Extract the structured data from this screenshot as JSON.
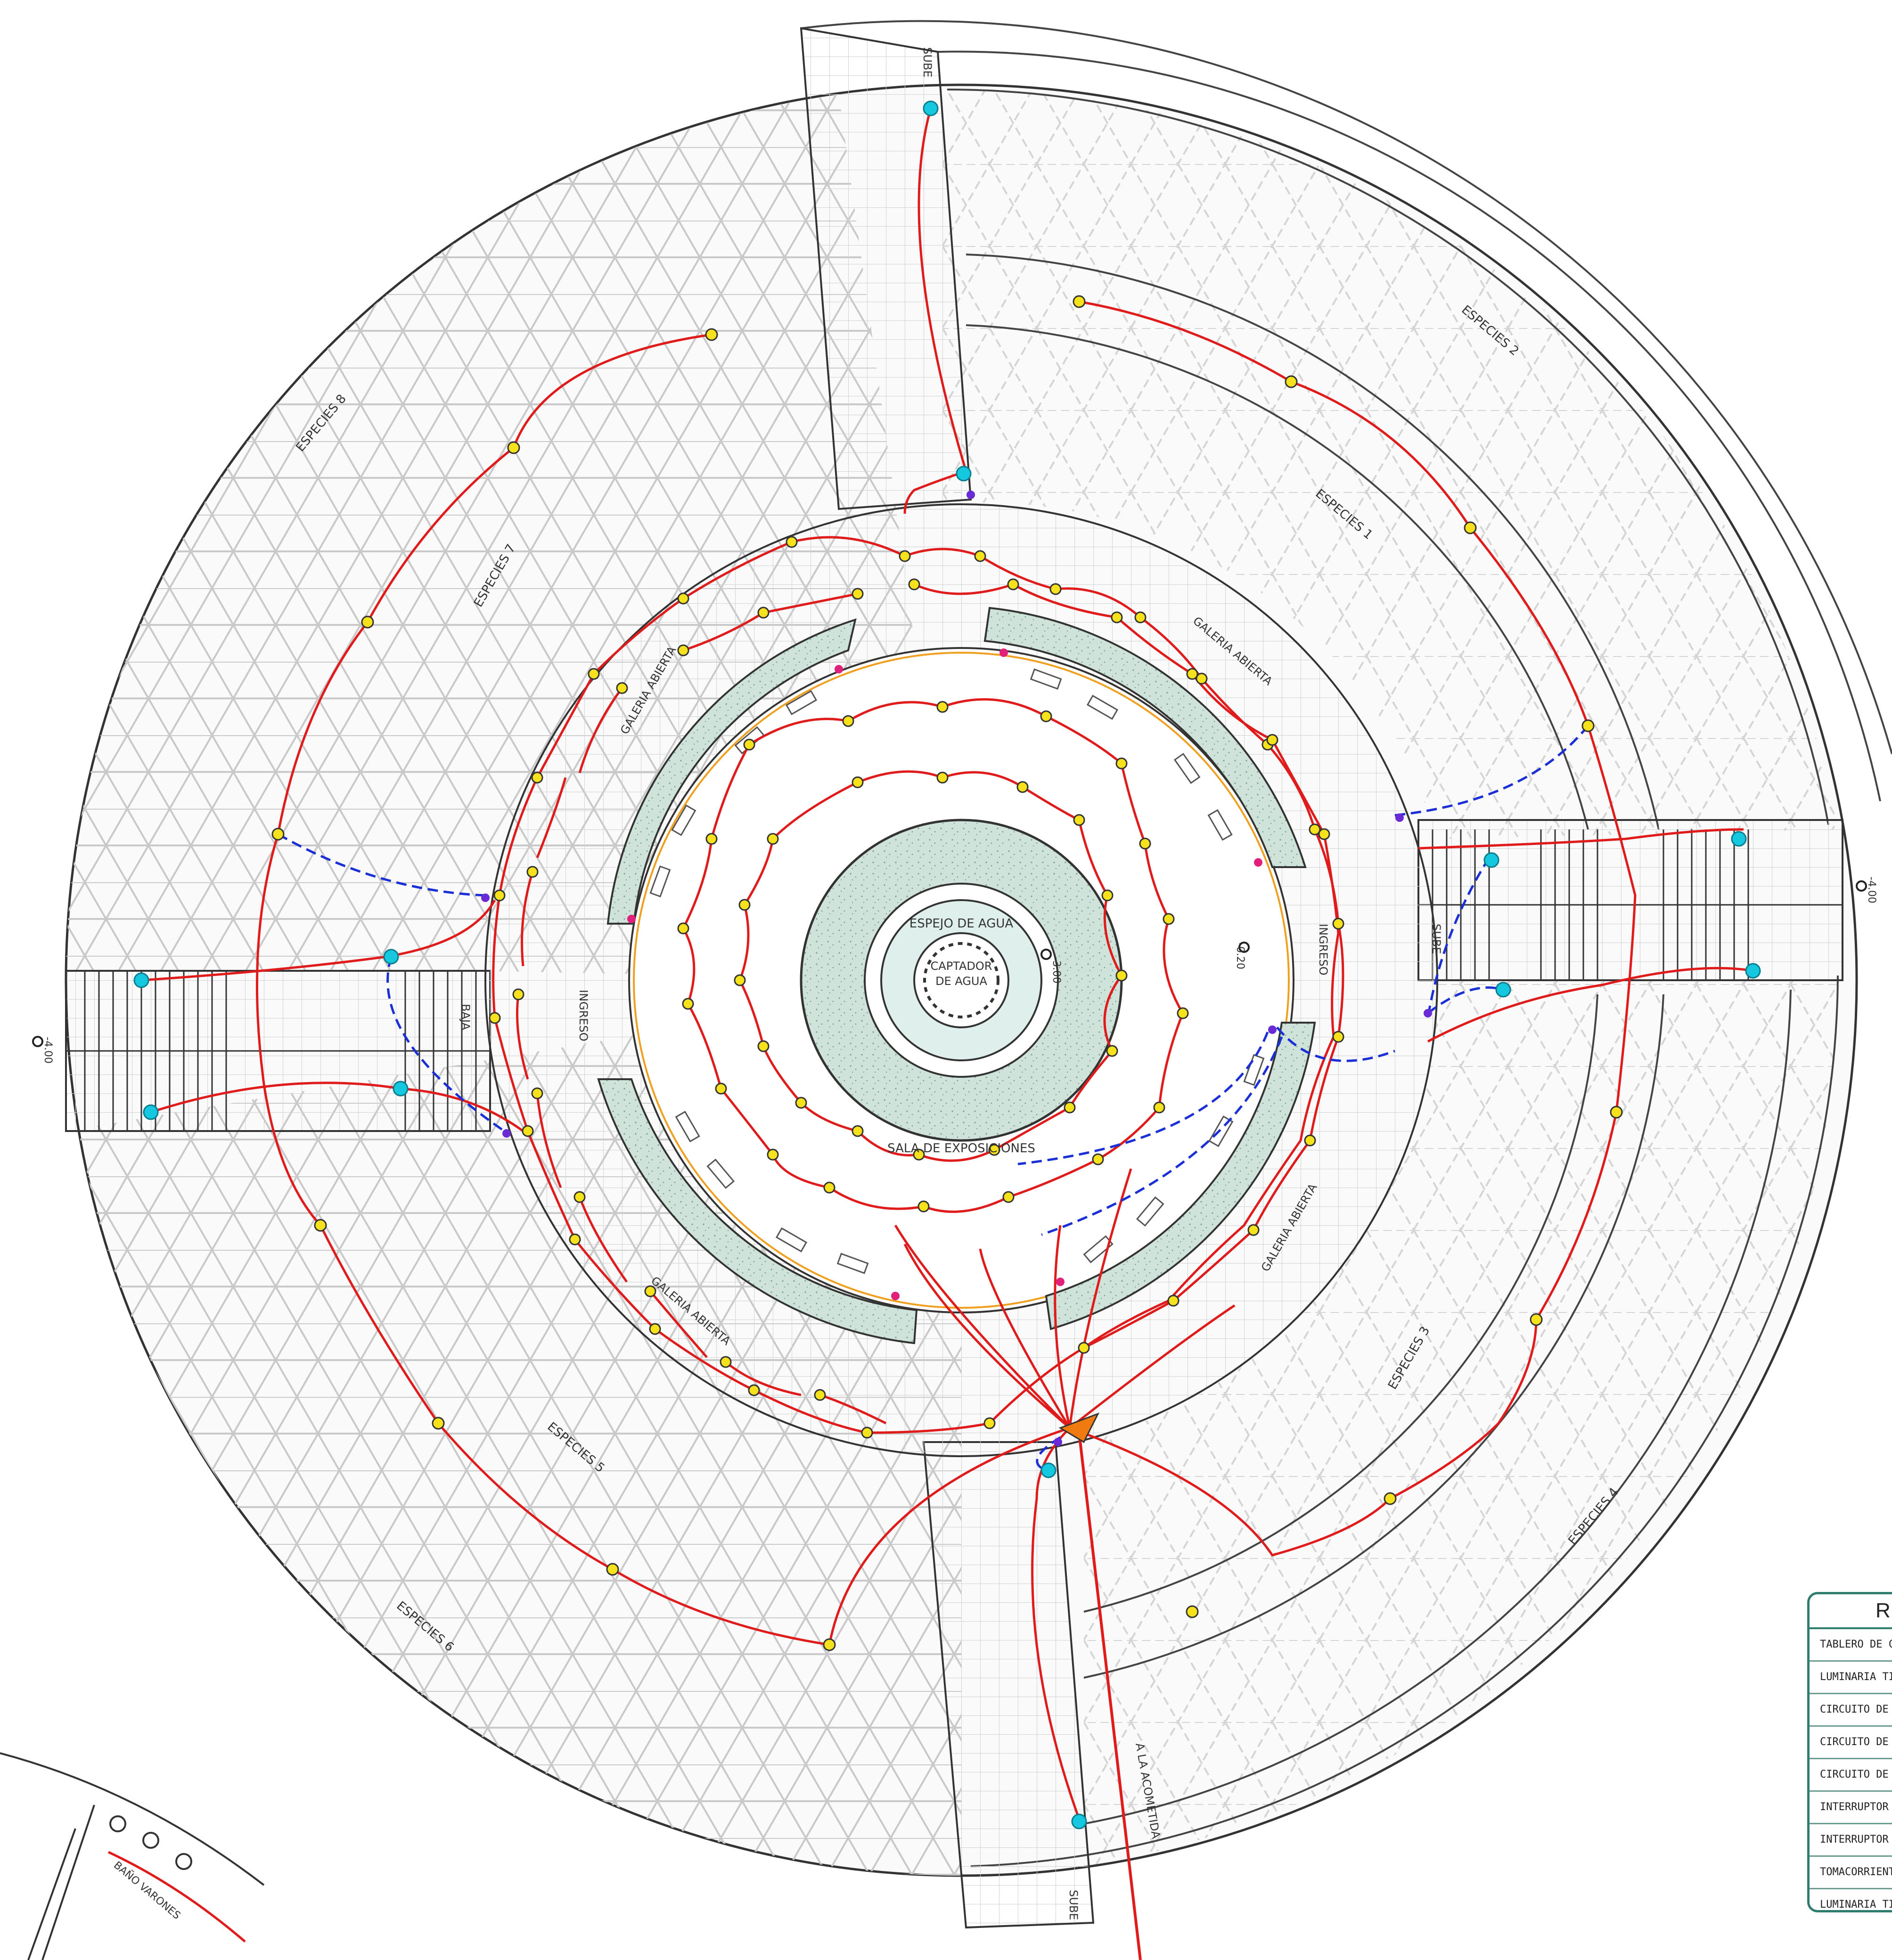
{
  "labels": {
    "espejo": "ESPEJO DE AGUA",
    "captador1": "CAPTADOR",
    "captador2": "DE AGUA",
    "sala": "SALA DE EXPOSICIONES",
    "galeria": "GALERIA ABIERTA",
    "ingreso": "INGRESO",
    "sube": "SUBE",
    "baja": "BAJA",
    "acometida": "A LA ACOMETIDA",
    "bano": "BAÑO VARONES",
    "especies": [
      "ESPECIES 1",
      "ESPECIES 2",
      "ESPECIES 3",
      "ESPECIES 4",
      "ESPECIES 5",
      "ESPECIES 6",
      "ESPECIES 7",
      "ESPECIES 8"
    ],
    "level_center": "-3.00",
    "level_inner": "-0.20",
    "level_side": "-4.00"
  },
  "legend": {
    "title": "RE",
    "rows": [
      "TABLERO DE CON",
      "LUMINARIA TIPO",
      "CIRCUITO DE ILUM",
      "CIRCUITO DE TOM",
      "CIRCUITO DE INT",
      "INTERRUPTOR SI",
      "INTERRUPTOR DO",
      "TOMACORRIENTE",
      "LUMINARIA TIPO"
    ]
  },
  "colors": {
    "circuit_light": "#e01b1b",
    "circuit_switch": "#1a2fd6",
    "luminaire": "#f5e21c",
    "sconce": "#16c7e0",
    "planter": "#cfe3da",
    "water": "#dff0ec",
    "panel": "#f07a10"
  }
}
